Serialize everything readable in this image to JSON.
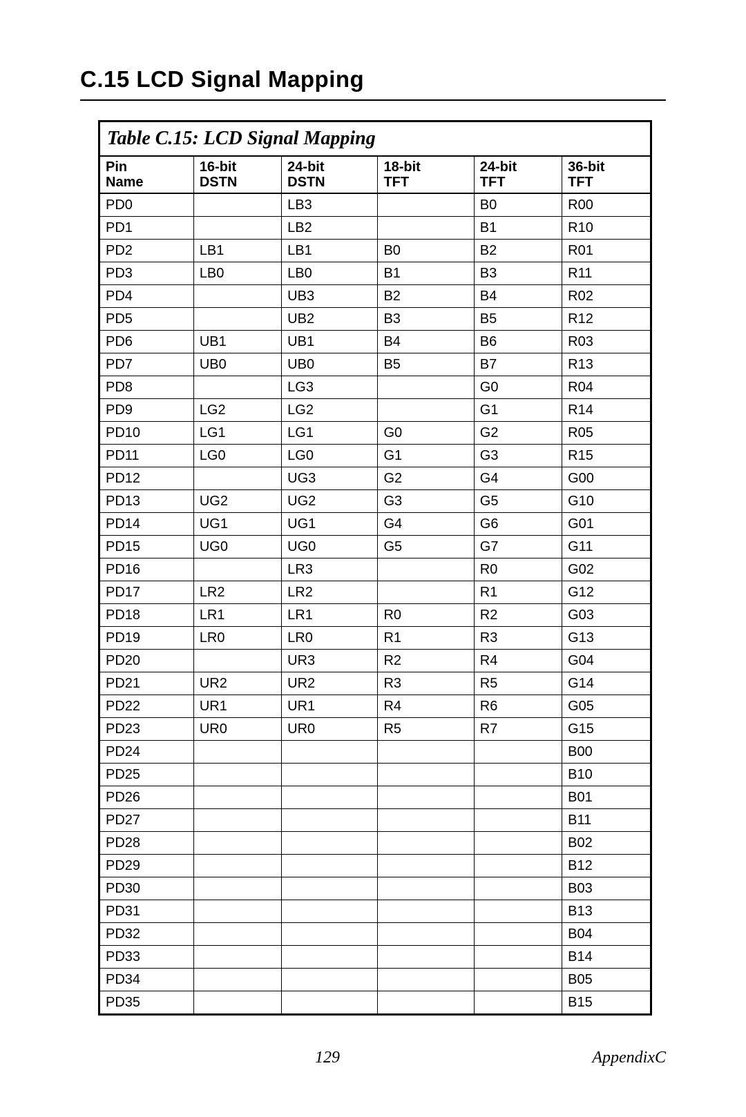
{
  "section_title": "C.15  LCD Signal Mapping",
  "table": {
    "caption": "Table C.15: LCD Signal Mapping",
    "columns": [
      {
        "line1": "Pin",
        "line2": "Name",
        "width": "17%"
      },
      {
        "line1": "16-bit",
        "line2": "DSTN",
        "width": "16%"
      },
      {
        "line1": "24-bit",
        "line2": "DSTN",
        "width": "17.5%"
      },
      {
        "line1": "18-bit",
        "line2": "TFT",
        "width": "17.5%"
      },
      {
        "line1": "24-bit",
        "line2": "TFT",
        "width": "16%"
      },
      {
        "line1": "36-bit",
        "line2": "TFT",
        "width": "16%"
      }
    ],
    "rows": [
      [
        "PD0",
        "",
        "LB3",
        "",
        "B0",
        "R00"
      ],
      [
        "PD1",
        "",
        "LB2",
        "",
        "B1",
        "R10"
      ],
      [
        "PD2",
        "LB1",
        "LB1",
        "B0",
        "B2",
        "R01"
      ],
      [
        "PD3",
        "LB0",
        "LB0",
        "B1",
        "B3",
        "R11"
      ],
      [
        "PD4",
        "",
        "UB3",
        "B2",
        "B4",
        "R02"
      ],
      [
        "PD5",
        "",
        "UB2",
        "B3",
        "B5",
        "R12"
      ],
      [
        "PD6",
        "UB1",
        "UB1",
        "B4",
        "B6",
        "R03"
      ],
      [
        "PD7",
        "UB0",
        "UB0",
        "B5",
        "B7",
        "R13"
      ],
      [
        "PD8",
        "",
        "LG3",
        "",
        "G0",
        "R04"
      ],
      [
        "PD9",
        "LG2",
        "LG2",
        "",
        "G1",
        "R14"
      ],
      [
        "PD10",
        "LG1",
        "LG1",
        "G0",
        "G2",
        "R05"
      ],
      [
        "PD11",
        "LG0",
        "LG0",
        "G1",
        "G3",
        "R15"
      ],
      [
        "PD12",
        "",
        "UG3",
        "G2",
        "G4",
        "G00"
      ],
      [
        "PD13",
        "UG2",
        "UG2",
        "G3",
        "G5",
        "G10"
      ],
      [
        "PD14",
        "UG1",
        "UG1",
        "G4",
        "G6",
        "G01"
      ],
      [
        "PD15",
        "UG0",
        "UG0",
        "G5",
        "G7",
        "G11"
      ],
      [
        "PD16",
        "",
        "LR3",
        "",
        "R0",
        "G02"
      ],
      [
        "PD17",
        "LR2",
        "LR2",
        "",
        "R1",
        "G12"
      ],
      [
        "PD18",
        "LR1",
        "LR1",
        "R0",
        "R2",
        "G03"
      ],
      [
        "PD19",
        "LR0",
        "LR0",
        "R1",
        "R3",
        "G13"
      ],
      [
        "PD20",
        "",
        "UR3",
        "R2",
        "R4",
        "G04"
      ],
      [
        "PD21",
        "UR2",
        "UR2",
        "R3",
        "R5",
        "G14"
      ],
      [
        "PD22",
        "UR1",
        "UR1",
        "R4",
        "R6",
        "G05"
      ],
      [
        "PD23",
        "UR0",
        "UR0",
        "R5",
        "R7",
        "G15"
      ],
      [
        "PD24",
        "",
        "",
        "",
        "",
        "B00"
      ],
      [
        "PD25",
        "",
        "",
        "",
        "",
        "B10"
      ],
      [
        "PD26",
        "",
        "",
        "",
        "",
        "B01"
      ],
      [
        "PD27",
        "",
        "",
        "",
        "",
        "B11"
      ],
      [
        "PD28",
        "",
        "",
        "",
        "",
        "B02"
      ],
      [
        "PD29",
        "",
        "",
        "",
        "",
        "B12"
      ],
      [
        "PD30",
        "",
        "",
        "",
        "",
        "B03"
      ],
      [
        "PD31",
        "",
        "",
        "",
        "",
        "B13"
      ],
      [
        "PD32",
        "",
        "",
        "",
        "",
        "B04"
      ],
      [
        "PD33",
        "",
        "",
        "",
        "",
        "B14"
      ],
      [
        "PD34",
        "",
        "",
        "",
        "",
        "B05"
      ],
      [
        "PD35",
        "",
        "",
        "",
        "",
        "B15"
      ]
    ]
  },
  "footer": {
    "page_number": "129",
    "section_ref": "AppendixC"
  }
}
